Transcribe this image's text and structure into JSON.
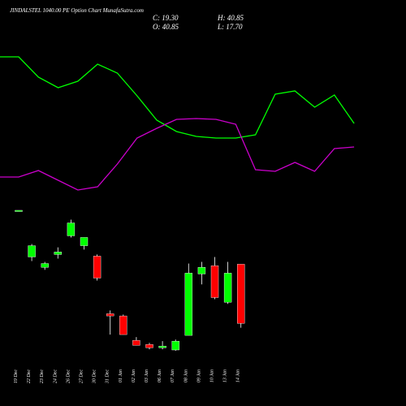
{
  "chart_data": {
    "type": "candlestick",
    "title": "JINDALSTEL 1040.00 PE Option Chart MunafaSutra.com",
    "ohlc_labels": {
      "close": "C: 19.30",
      "high": "H: 40.85",
      "open": "O: 40.85",
      "low": "L: 17.70"
    },
    "categories": [
      "19 Dec",
      "22 Dec",
      "23 Dec",
      "24 Dec",
      "26 Dec",
      "27 Dec",
      "30 Dec",
      "31 Dec",
      "01 Jan",
      "02 Jan",
      "03 Jan",
      "06 Jan",
      "07 Jan",
      "08 Jan",
      "09 Jan",
      "10 Jan",
      "13 Jan",
      "14 Jan"
    ],
    "open": [
      60.3,
      43.5,
      39.7,
      44.4,
      51.2,
      47.6,
      43.8,
      22.8,
      22.0,
      13.1,
      11.6,
      10.4,
      9.6,
      14.9,
      37.3,
      40.3,
      27.0,
      40.85
    ],
    "high": [
      60.5,
      48.2,
      41.7,
      47.0,
      57.1,
      50.6,
      44.4,
      24.0,
      22.5,
      14.3,
      12.2,
      12.8,
      13.4,
      41.1,
      41.7,
      43.5,
      41.7,
      40.85
    ],
    "low": [
      60.3,
      42.0,
      38.8,
      42.9,
      50.6,
      46.2,
      34.9,
      15.2,
      15.2,
      11.3,
      9.8,
      9.8,
      9.3,
      14.9,
      33.5,
      28.1,
      26.4,
      17.7
    ],
    "close": [
      60.5,
      47.6,
      41.1,
      45.3,
      55.9,
      50.6,
      35.8,
      22.0,
      15.2,
      11.3,
      10.4,
      11.0,
      12.8,
      37.6,
      39.7,
      28.7,
      37.6,
      19.3
    ],
    "up_color": "#00ff00",
    "down_color": "#ff0000",
    "lines": [
      {
        "color": "#00ff00",
        "values": [
          180,
          155,
          142,
          150,
          171,
          160,
          132,
          102,
          88,
          82,
          80,
          80,
          84,
          134,
          138,
          118,
          133,
          98
        ]
      },
      {
        "color": "#cc00cc",
        "values": [
          32,
          40,
          28,
          16,
          20,
          48,
          80,
          92,
          103,
          104,
          103,
          97,
          41,
          39,
          50,
          39,
          67,
          69
        ]
      }
    ]
  }
}
